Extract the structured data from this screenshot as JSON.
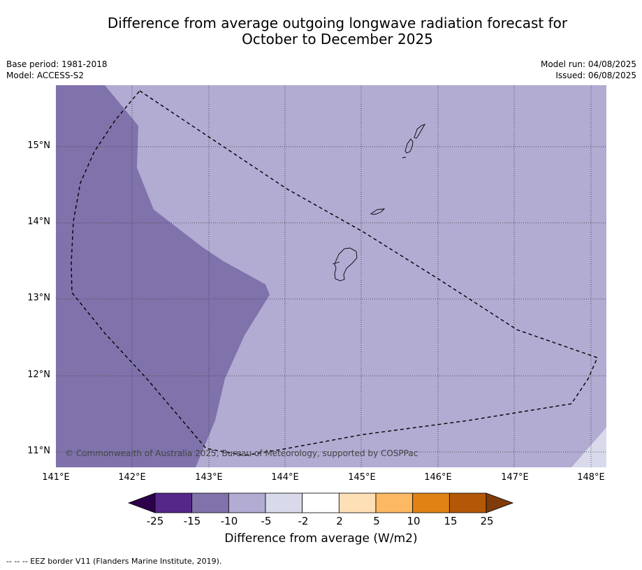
{
  "title_line1": "Difference from average outgoing longwave radiation forecast for",
  "title_line2": "October to December 2025",
  "meta": {
    "base_period": "Base period: 1981-2018",
    "model": "Model: ACCESS-S2",
    "model_run": "Model run: 04/08/2025",
    "issued": "Issued: 06/08/2025"
  },
  "map": {
    "lat_labels": [
      "15°N",
      "14°N",
      "13°N",
      "12°N",
      "11°N"
    ],
    "lon_labels": [
      "141°E",
      "142°E",
      "143°E",
      "144°E",
      "145°E",
      "146°E",
      "147°E",
      "148°E"
    ],
    "copyright": "© Commonwealth of Australia 2025, Bureau of Meteorology, supported by COSPPac",
    "colors": {
      "band_-15_-10": "#8073ac",
      "band_-10_-5": "#b2abd2",
      "band_-5_-2": "#d8daeb"
    }
  },
  "colorbar": {
    "ticks": [
      "-25",
      "-15",
      "-10",
      "-5",
      "-2",
      "2",
      "5",
      "10",
      "15",
      "25"
    ],
    "colors": [
      "#2d004b",
      "#542788",
      "#8073ac",
      "#b2abd2",
      "#d8daeb",
      "#ffffff",
      "#fee0b6",
      "#fdb863",
      "#e08214",
      "#b35806",
      "#7f3b08"
    ],
    "label": "Difference from average (W/m2)"
  },
  "footnote": "--  --  -- EEZ border V11 (Flanders Marine Institute, 2019)."
}
